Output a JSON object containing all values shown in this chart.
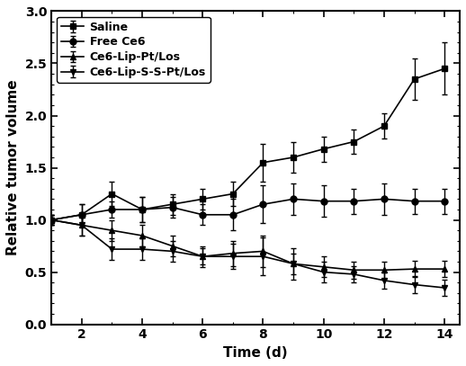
{
  "title": "",
  "xlabel": "Time (d)",
  "ylabel": "Relative tumor volume",
  "xlim": [
    1,
    14.5
  ],
  "ylim": [
    0.0,
    3.0
  ],
  "xticks": [
    2,
    4,
    6,
    8,
    10,
    12,
    14
  ],
  "yticks": [
    0.0,
    0.5,
    1.0,
    1.5,
    2.0,
    2.5,
    3.0
  ],
  "series": [
    {
      "label": "Saline",
      "marker": "s",
      "x": [
        1,
        2,
        3,
        4,
        5,
        6,
        7,
        8,
        9,
        10,
        11,
        12,
        13,
        14
      ],
      "y": [
        1.0,
        1.05,
        1.25,
        1.1,
        1.15,
        1.2,
        1.25,
        1.55,
        1.6,
        1.68,
        1.75,
        1.9,
        2.35,
        2.45
      ],
      "yerr": [
        0.05,
        0.1,
        0.12,
        0.12,
        0.1,
        0.1,
        0.12,
        0.18,
        0.15,
        0.12,
        0.12,
        0.12,
        0.2,
        0.25
      ]
    },
    {
      "label": "Free Ce6",
      "marker": "o",
      "x": [
        1,
        2,
        3,
        4,
        5,
        6,
        7,
        8,
        9,
        10,
        11,
        12,
        13,
        14
      ],
      "y": [
        1.0,
        1.05,
        1.1,
        1.1,
        1.12,
        1.05,
        1.05,
        1.15,
        1.2,
        1.18,
        1.18,
        1.2,
        1.18,
        1.18
      ],
      "yerr": [
        0.05,
        0.1,
        0.08,
        0.12,
        0.1,
        0.1,
        0.15,
        0.18,
        0.15,
        0.15,
        0.12,
        0.15,
        0.12,
        0.12
      ]
    },
    {
      "label": "Ce6-Lip-Pt/Los",
      "marker": "^",
      "x": [
        1,
        2,
        3,
        4,
        5,
        6,
        7,
        8,
        9,
        10,
        11,
        12,
        13,
        14
      ],
      "y": [
        1.0,
        0.95,
        0.9,
        0.85,
        0.75,
        0.65,
        0.68,
        0.7,
        0.58,
        0.55,
        0.52,
        0.52,
        0.53,
        0.53
      ],
      "yerr": [
        0.05,
        0.1,
        0.1,
        0.1,
        0.1,
        0.1,
        0.12,
        0.15,
        0.1,
        0.1,
        0.08,
        0.08,
        0.08,
        0.08
      ]
    },
    {
      "label": "Ce6-Lip-S-S-Pt/Los",
      "marker": "v",
      "x": [
        1,
        2,
        3,
        4,
        5,
        6,
        7,
        8,
        9,
        10,
        11,
        12,
        13,
        14
      ],
      "y": [
        1.0,
        0.95,
        0.72,
        0.72,
        0.7,
        0.65,
        0.65,
        0.65,
        0.58,
        0.5,
        0.48,
        0.42,
        0.38,
        0.35
      ],
      "yerr": [
        0.05,
        0.1,
        0.1,
        0.1,
        0.1,
        0.08,
        0.12,
        0.18,
        0.15,
        0.1,
        0.08,
        0.08,
        0.08,
        0.08
      ]
    }
  ],
  "line_color": "#000000",
  "figsize": [
    5.18,
    4.07
  ],
  "dpi": 100,
  "legend_loc": "upper left",
  "fontsize_label": 11,
  "fontsize_tick": 10,
  "fontsize_legend": 9
}
